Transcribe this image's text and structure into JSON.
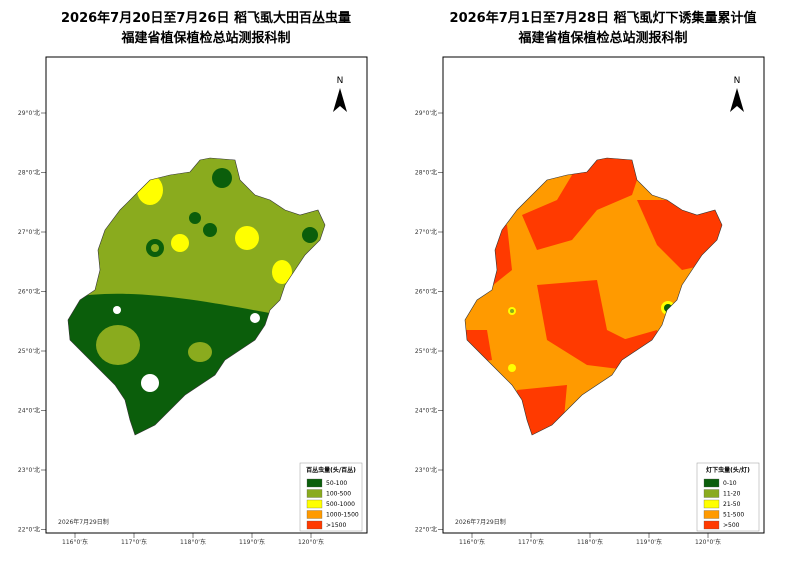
{
  "lat_labels": [
    "29°0'北",
    "28°0'北",
    "27°0'北",
    "26°0'北",
    "25°0'北",
    "24°0'北",
    "23°0'北",
    "22°0'北"
  ],
  "lon_labels": [
    "116°0'东",
    "117°0'东",
    "118°0'东",
    "119°0'东",
    "120°0'东"
  ],
  "north": "N",
  "left_map": {
    "title": "2026年7月20日至7月26日 稻飞虱大田百丛虫量",
    "subtitle": "福建省植保植检总站测报科制",
    "date": "2026年7月29日制",
    "legend_title": "百丛虫量(头/百丛)",
    "legend_items": [
      "50-100",
      "100-500",
      "500-1000",
      "1000-1500",
      ">1500"
    ]
  },
  "right_map": {
    "title": "2026年7月1日至7月28日 稻飞虱灯下诱集量累计值",
    "subtitle": "福建省植保植检总站测报科制",
    "date": "2026年7月29日制",
    "legend_title": "灯下虫量(头/灯)",
    "legend_items": [
      "0-10",
      "11-20",
      "21-50",
      "51-500",
      ">500"
    ]
  }
}
